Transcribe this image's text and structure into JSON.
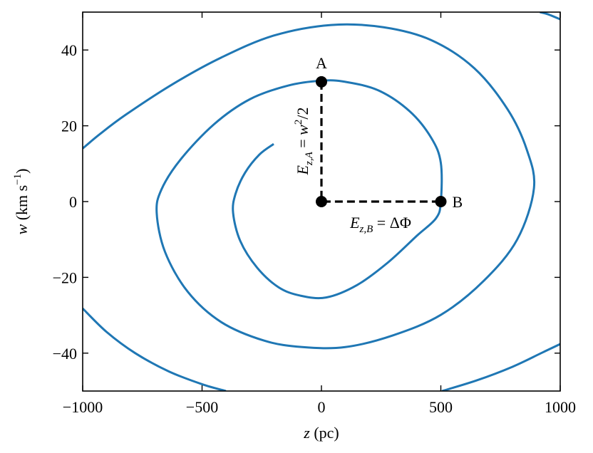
{
  "chart_data": {
    "type": "line",
    "xlabel": "z (pc)",
    "ylabel": "w (km s⁻¹)",
    "xlim": [
      -1000,
      1000
    ],
    "ylim": [
      -50,
      50
    ],
    "x_ticks": [
      -1000,
      -500,
      0,
      500,
      1000
    ],
    "x_tick_labels": [
      "−1000",
      "−500",
      "0",
      "500",
      "1000"
    ],
    "y_ticks": [
      -40,
      -20,
      0,
      20,
      40
    ],
    "y_tick_labels": [
      "−40",
      "−20",
      "0",
      "20",
      "40"
    ],
    "grid": false,
    "series": [
      {
        "color": "#1f77b4",
        "style": "solid",
        "points": [
          [
            -200,
            15.2
          ],
          [
            -260,
            12.4
          ],
          [
            -320,
            7.6
          ],
          [
            -360,
            2.0
          ],
          [
            -370,
            -3.0
          ],
          [
            -340,
            -10.4
          ],
          [
            -270,
            -17.4
          ],
          [
            -180,
            -22.6
          ],
          [
            -90,
            -24.8
          ],
          [
            20,
            -25.3
          ],
          [
            150,
            -22.0
          ],
          [
            280,
            -16.0
          ],
          [
            400,
            -9.0
          ],
          [
            480,
            -4.4
          ],
          [
            500,
            0.0
          ],
          [
            500,
            10.2
          ],
          [
            460,
            16.8
          ],
          [
            370,
            23.8
          ],
          [
            240,
            29.3
          ],
          [
            100,
            31.6
          ],
          [
            0,
            31.9
          ],
          [
            -140,
            30.6
          ],
          [
            -300,
            27.0
          ],
          [
            -450,
            20.4
          ],
          [
            -590,
            11.1
          ],
          [
            -670,
            3.2
          ],
          [
            -690,
            -3.0
          ],
          [
            -655,
            -13.3
          ],
          [
            -560,
            -23.8
          ],
          [
            -420,
            -31.8
          ],
          [
            -240,
            -36.7
          ],
          [
            -80,
            -38.4
          ],
          [
            100,
            -38.4
          ],
          [
            300,
            -35.3
          ],
          [
            500,
            -29.9
          ],
          [
            680,
            -20.9
          ],
          [
            820,
            -10.0
          ],
          [
            890,
            3.5
          ],
          [
            860,
            13.7
          ],
          [
            780,
            24.3
          ],
          [
            640,
            35.2
          ],
          [
            460,
            42.6
          ],
          [
            260,
            46.0
          ],
          [
            40,
            46.6
          ],
          [
            -200,
            43.8
          ],
          [
            -420,
            38.0
          ],
          [
            -620,
            31.1
          ],
          [
            -820,
            22.9
          ],
          [
            -930,
            17.7
          ],
          [
            -1000,
            14.0
          ]
        ]
      },
      {
        "color": "#1f77b4",
        "style": "solid",
        "points": [
          [
            -1000,
            -28.2
          ],
          [
            -900,
            -34.4
          ],
          [
            -780,
            -40.0
          ],
          [
            -640,
            -44.8
          ],
          [
            -500,
            -48.2
          ],
          [
            -400,
            -50.0
          ]
        ]
      },
      {
        "color": "#1f77b4",
        "style": "solid",
        "points": [
          [
            505,
            -50.0
          ],
          [
            650,
            -47.2
          ],
          [
            800,
            -43.6
          ],
          [
            920,
            -40.0
          ],
          [
            1000,
            -37.6
          ]
        ]
      },
      {
        "color": "#1f77b4",
        "style": "solid",
        "points": [
          [
            915,
            50.0
          ],
          [
            950,
            49.4
          ],
          [
            1000,
            48.1
          ]
        ]
      },
      {
        "color": "#000000",
        "style": "dashed",
        "points": [
          [
            0,
            31.6
          ],
          [
            0,
            0
          ],
          [
            500,
            0
          ]
        ]
      }
    ],
    "markers": [
      {
        "label": "A",
        "x": 0,
        "y": 31.6
      },
      {
        "label": "",
        "x": 0,
        "y": 0
      },
      {
        "label": "B",
        "x": 500,
        "y": 0
      }
    ]
  },
  "annotations": {
    "vertical_label": "E_{z,A} = w²/2",
    "horizontal_label": "E_{z,B} = ΔΦ"
  }
}
